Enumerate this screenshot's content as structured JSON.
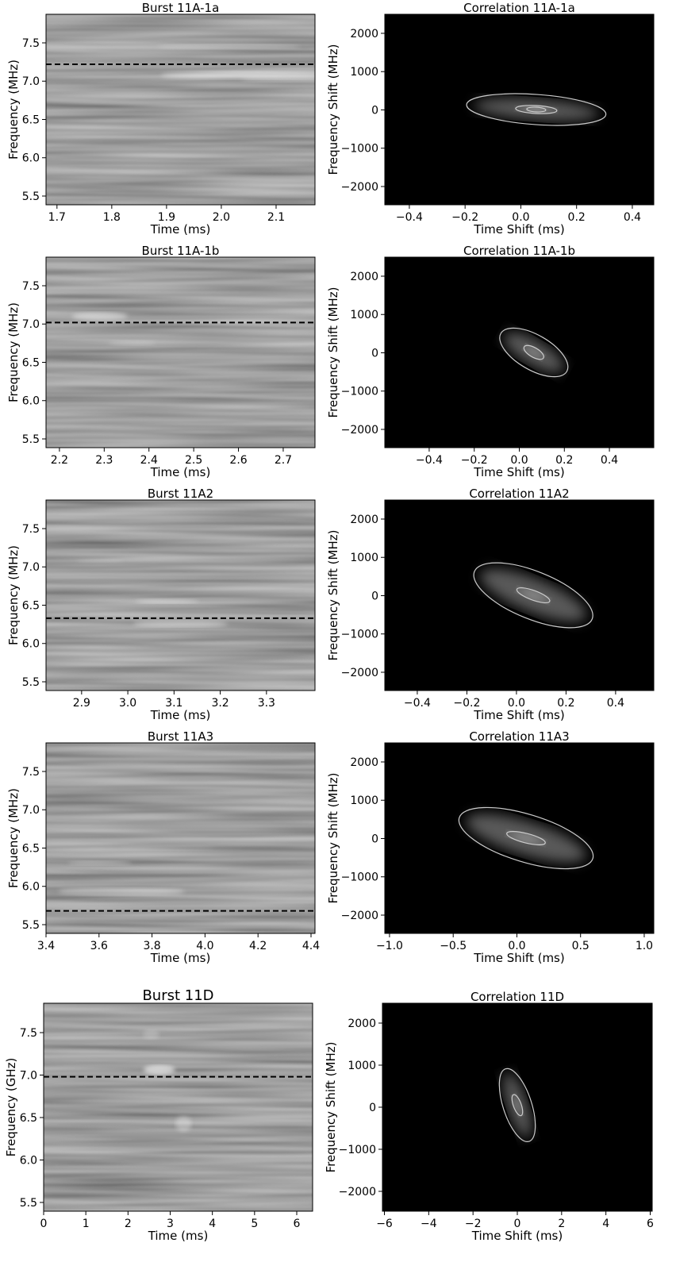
{
  "chart_data": [
    {
      "type": "spectrogram",
      "title": "Burst 11A-1a",
      "xlabel": "Time (ms)",
      "ylabel": "Frequency (MHz)",
      "xlim": [
        1.68,
        2.171
      ],
      "ylim": [
        5.386,
        7.873
      ],
      "xticks": [
        1.7,
        1.8,
        1.9,
        {
          "value": 2.0,
          "label": "2.0"
        },
        2.1
      ],
      "yticks": [
        5.5,
        {
          "value": 6.0,
          "label": "6.0"
        },
        6.5,
        {
          "value": 7.0,
          "label": "7.0"
        },
        7.5
      ],
      "hline": 7.22,
      "colormap": "gray"
    },
    {
      "type": "correlation",
      "title": "Correlation 11A-1a",
      "xlabel": "Time Shift (ms)",
      "ylabel": "Frequency Shift (MHz)",
      "xlim": [
        -0.488,
        0.477
      ],
      "ylim": [
        -2477,
        2497
      ],
      "xticks": [
        {
          "value": -0.4,
          "label": "−0.4"
        },
        {
          "value": -0.2,
          "label": "−0.2"
        },
        {
          "value": 0,
          "label": "0.0"
        },
        0.2,
        0.4
      ],
      "yticks": [
        {
          "value": -2000,
          "label": "−2000"
        },
        {
          "value": -1000,
          "label": "−1000"
        },
        0,
        1000,
        2000
      ],
      "colormap": "gray"
    },
    {
      "type": "spectrogram",
      "title": "Burst 11A-1b",
      "xlabel": "Time (ms)",
      "ylabel": "Frequency (MHz)",
      "xlim": [
        2.17,
        2.771
      ],
      "ylim": [
        5.386,
        7.873
      ],
      "xticks": [
        2.2,
        2.3,
        2.4,
        2.5,
        2.6,
        2.7
      ],
      "yticks": [
        5.5,
        {
          "value": 6.0,
          "label": "6.0"
        },
        6.5,
        {
          "value": 7.0,
          "label": "7.0"
        },
        7.5
      ],
      "hline": 7.02,
      "colormap": "gray"
    },
    {
      "type": "correlation",
      "title": "Correlation 11A-1b",
      "xlabel": "Time Shift (ms)",
      "ylabel": "Frequency Shift (MHz)",
      "xlim": [
        -0.597,
        0.597
      ],
      "ylim": [
        -2477,
        2497
      ],
      "xticks": [
        {
          "value": -0.4,
          "label": "−0.4"
        },
        {
          "value": -0.2,
          "label": "−0.2"
        },
        {
          "value": 0,
          "label": "0.0"
        },
        0.2,
        0.4
      ],
      "yticks": [
        {
          "value": -2000,
          "label": "−2000"
        },
        {
          "value": -1000,
          "label": "−1000"
        },
        0,
        1000,
        2000
      ],
      "colormap": "gray"
    },
    {
      "type": "spectrogram",
      "title": "Burst 11A2",
      "xlabel": "Time (ms)",
      "ylabel": "Frequency (MHz)",
      "xlim": [
        2.823,
        3.405
      ],
      "ylim": [
        5.386,
        7.873
      ],
      "xticks": [
        2.9,
        {
          "value": 3.0,
          "label": "3.0"
        },
        3.1,
        3.2,
        3.3
      ],
      "yticks": [
        5.5,
        {
          "value": 6.0,
          "label": "6.0"
        },
        6.5,
        {
          "value": 7.0,
          "label": "7.0"
        },
        7.5
      ],
      "hline": 6.33,
      "colormap": "gray"
    },
    {
      "type": "correlation",
      "title": "Correlation 11A2",
      "xlabel": "Time Shift (ms)",
      "ylabel": "Frequency Shift (MHz)",
      "xlim": [
        -0.531,
        0.554
      ],
      "ylim": [
        -2477,
        2497
      ],
      "xticks": [
        {
          "value": -0.4,
          "label": "−0.4"
        },
        {
          "value": -0.2,
          "label": "−0.2"
        },
        {
          "value": 0,
          "label": "0.0"
        },
        0.2,
        0.4
      ],
      "yticks": [
        {
          "value": -2000,
          "label": "−2000"
        },
        {
          "value": -1000,
          "label": "−1000"
        },
        0,
        1000,
        2000
      ],
      "colormap": "gray"
    },
    {
      "type": "spectrogram",
      "title": "Burst 11A3",
      "xlabel": "Time (ms)",
      "ylabel": "Frequency (MHz)",
      "xlim": [
        3.4,
        4.415
      ],
      "ylim": [
        5.386,
        7.873
      ],
      "xticks": [
        3.4,
        3.6,
        3.8,
        {
          "value": 4.0,
          "label": "4.0"
        },
        4.2,
        4.4
      ],
      "yticks": [
        5.5,
        {
          "value": 6.0,
          "label": "6.0"
        },
        6.5,
        {
          "value": 7.0,
          "label": "7.0"
        },
        7.5
      ],
      "hline": 5.68,
      "colormap": "gray"
    },
    {
      "type": "correlation",
      "title": "Correlation 11A3",
      "xlabel": "Time Shift (ms)",
      "ylabel": "Frequency Shift (MHz)",
      "xlim": [
        -1.037,
        1.075
      ],
      "ylim": [
        -2477,
        2497
      ],
      "xticks": [
        {
          "value": -1.0,
          "label": "−1.0"
        },
        {
          "value": -0.5,
          "label": "−0.5"
        },
        {
          "value": 0,
          "label": "0.0"
        },
        0.5,
        {
          "value": 1.0,
          "label": "1.0"
        }
      ],
      "yticks": [
        {
          "value": -2000,
          "label": "−2000"
        },
        {
          "value": -1000,
          "label": "−1000"
        },
        0,
        1000,
        2000
      ],
      "colormap": "gray"
    },
    {
      "type": "spectrogram",
      "title": "Burst 11D",
      "xlabel": "Time (ms)",
      "ylabel": "Frequency (GHz)",
      "xlim": [
        0,
        6.376
      ],
      "ylim": [
        5.397,
        7.846
      ],
      "xticks": [
        0,
        1,
        2,
        3,
        4,
        5,
        6
      ],
      "yticks": [
        5.5,
        {
          "value": 6.0,
          "label": "6.0"
        },
        6.5,
        {
          "value": 7.0,
          "label": "7.0"
        },
        7.5
      ],
      "hline": 6.98,
      "colormap": "gray"
    },
    {
      "type": "correlation",
      "title": "Correlation 11D",
      "xlabel": "Time Shift (ms)",
      "ylabel": "Frequency Shift (MHz)",
      "xlim": [
        -6.09,
        6.09
      ],
      "ylim": [
        -2472,
        2472
      ],
      "xticks": [
        {
          "value": -6,
          "label": "−6"
        },
        {
          "value": -4,
          "label": "−4"
        },
        {
          "value": -2,
          "label": "−2"
        },
        0,
        2,
        4,
        6
      ],
      "yticks": [
        {
          "value": -2000,
          "label": "−2000"
        },
        {
          "value": -1000,
          "label": "−1000"
        },
        0,
        1000,
        2000
      ],
      "colormap": "gray"
    }
  ]
}
